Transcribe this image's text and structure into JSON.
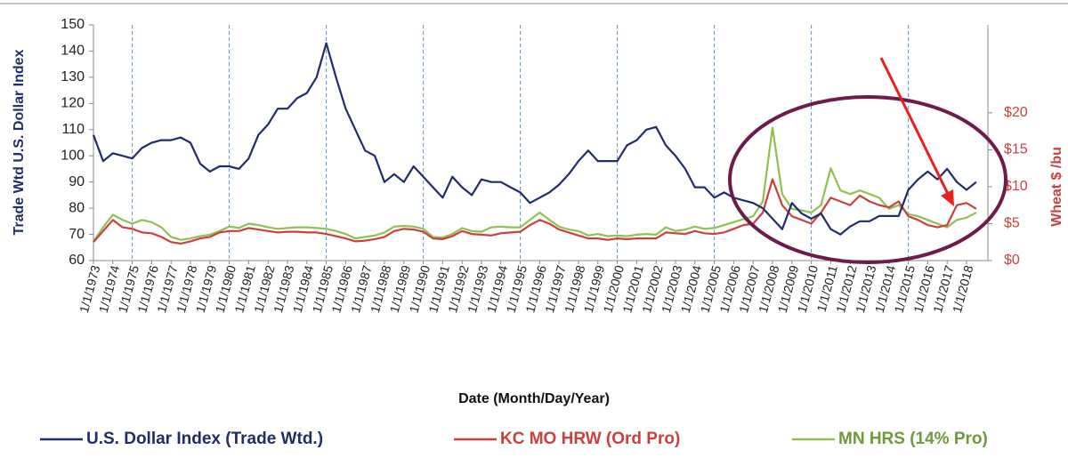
{
  "chart_data": {
    "type": "line",
    "x_label": "Date (Month/Day/Year)",
    "y_label": "Trade Wtd U.S. Dollar Index",
    "y2_label": "Wheat $ /bu",
    "categories": [
      "1/1/1973",
      null,
      "1/1/1974",
      null,
      "1/1/1975",
      null,
      "1/1/1976",
      null,
      "1/1/1977",
      null,
      "1/1/1978",
      null,
      "1/1/1979",
      null,
      "1/1/1980",
      null,
      "1/1/1981",
      null,
      "1/1/1982",
      null,
      "1/1/1983",
      null,
      "1/1/1984",
      null,
      "1/1/1985",
      null,
      "1/1/1986",
      null,
      "1/1/1987",
      null,
      "1/1/1988",
      null,
      "1/1/1989",
      null,
      "1/1/1990",
      null,
      "1/1/1991",
      null,
      "1/1/1992",
      null,
      "1/1/1993",
      null,
      "1/1/1994",
      null,
      "1/1/1995",
      null,
      "1/1/1996",
      null,
      "1/1/1997",
      null,
      "1/1/1998",
      null,
      "1/1/1999",
      null,
      "1/1/2000",
      null,
      "1/1/2001",
      null,
      "1/1/2002",
      null,
      "1/1/2003",
      null,
      "1/1/2004",
      null,
      "1/1/2005",
      null,
      "1/1/2006",
      null,
      "1/1/2007",
      null,
      "1/1/2008",
      null,
      "1/1/2009",
      null,
      "1/1/2010",
      null,
      "1/1/2011",
      null,
      "1/1/2012",
      null,
      "1/1/2013",
      null,
      "1/1/2014",
      null,
      "1/1/2015",
      null,
      "1/1/2016",
      null,
      "1/1/2017",
      null,
      "1/1/2018",
      null
    ],
    "ylim": [
      60,
      150
    ],
    "yticks": [
      60,
      70,
      80,
      90,
      100,
      110,
      120,
      130,
      140,
      150
    ],
    "y2lim": [
      0,
      31.9
    ],
    "y2ticks": [
      {
        "value": 0,
        "label": "$0"
      },
      {
        "value": 5,
        "label": "$5"
      },
      {
        "value": 10,
        "label": "$10"
      },
      {
        "value": 15,
        "label": "$15"
      },
      {
        "value": 20,
        "label": "$20"
      }
    ],
    "grid": true,
    "legend": "bottom",
    "series": [
      {
        "name": "U.S. Dollar Index (Trade Wtd.)",
        "color": "#1f2d6b",
        "values": [
          108,
          98,
          101,
          100,
          99,
          103,
          105,
          106,
          106,
          107,
          105,
          97,
          94,
          96,
          96,
          95,
          99,
          108,
          112,
          118,
          118,
          122,
          124,
          130,
          143,
          130,
          118,
          110,
          102,
          100,
          90,
          93,
          90,
          96,
          92,
          88,
          84,
          92,
          88,
          85,
          91,
          90,
          90,
          88,
          86,
          82,
          84,
          86,
          89,
          93,
          98,
          102,
          98,
          98,
          98,
          104,
          106,
          110,
          111,
          104,
          100,
          95,
          88,
          88,
          84,
          86,
          84,
          83,
          82,
          80,
          76,
          72,
          82,
          78,
          76,
          78,
          72,
          70,
          73,
          75,
          75,
          77,
          77,
          77,
          87,
          91,
          94,
          91,
          95,
          90,
          87,
          90
        ]
      },
      {
        "name": "KC MO HRW (Ord Pro)",
        "color": "#c9413f",
        "axis": "y2",
        "values": [
          2.5,
          4.0,
          5.5,
          4.5,
          4.3,
          3.8,
          3.7,
          3.2,
          2.5,
          2.3,
          2.6,
          3.0,
          3.2,
          3.8,
          4.0,
          4.0,
          4.4,
          4.2,
          4.0,
          3.8,
          3.9,
          3.9,
          3.8,
          3.8,
          3.6,
          3.3,
          3.0,
          2.6,
          2.7,
          2.9,
          3.2,
          4.0,
          4.3,
          4.2,
          3.9,
          3.0,
          2.9,
          3.3,
          4.0,
          3.6,
          3.5,
          3.4,
          3.7,
          3.8,
          3.9,
          4.8,
          5.5,
          5.0,
          4.2,
          3.8,
          3.4,
          3.0,
          3.0,
          2.8,
          3.0,
          2.9,
          3.0,
          3.0,
          3.0,
          3.8,
          3.7,
          3.6,
          4.0,
          3.7,
          3.6,
          3.8,
          4.3,
          4.8,
          5.0,
          6.5,
          11.0,
          7.5,
          6.0,
          5.5,
          5.0,
          6.5,
          8.5,
          8.0,
          7.5,
          8.8,
          8.0,
          7.5,
          7.2,
          8.0,
          6.0,
          5.5,
          4.8,
          4.5,
          4.8,
          7.5,
          7.8,
          7.0
        ]
      },
      {
        "name": "MN HRS (14% Pro)",
        "color": "#92c050",
        "axis": "y2",
        "values": [
          2.6,
          4.5,
          6.2,
          5.5,
          5.0,
          5.5,
          5.2,
          4.5,
          3.2,
          2.8,
          3.0,
          3.3,
          3.5,
          4.0,
          4.6,
          4.4,
          5.0,
          4.8,
          4.5,
          4.3,
          4.4,
          4.5,
          4.5,
          4.4,
          4.3,
          4.0,
          3.6,
          3.0,
          3.2,
          3.4,
          3.8,
          4.6,
          4.7,
          4.6,
          4.3,
          3.2,
          3.1,
          3.6,
          4.4,
          4.0,
          3.9,
          4.5,
          4.6,
          4.5,
          4.5,
          5.5,
          6.5,
          5.5,
          4.6,
          4.2,
          4.0,
          3.4,
          3.6,
          3.3,
          3.4,
          3.3,
          3.5,
          3.6,
          3.5,
          4.5,
          4.0,
          4.2,
          4.6,
          4.3,
          4.4,
          4.8,
          5.2,
          5.6,
          6.0,
          8.0,
          18.0,
          9.0,
          7.0,
          6.8,
          6.5,
          7.5,
          12.5,
          9.5,
          9.0,
          9.5,
          9.0,
          8.5,
          7.0,
          7.5,
          6.3,
          6.0,
          5.5,
          5.0,
          4.5,
          5.5,
          5.8,
          6.5
        ]
      }
    ]
  }
}
